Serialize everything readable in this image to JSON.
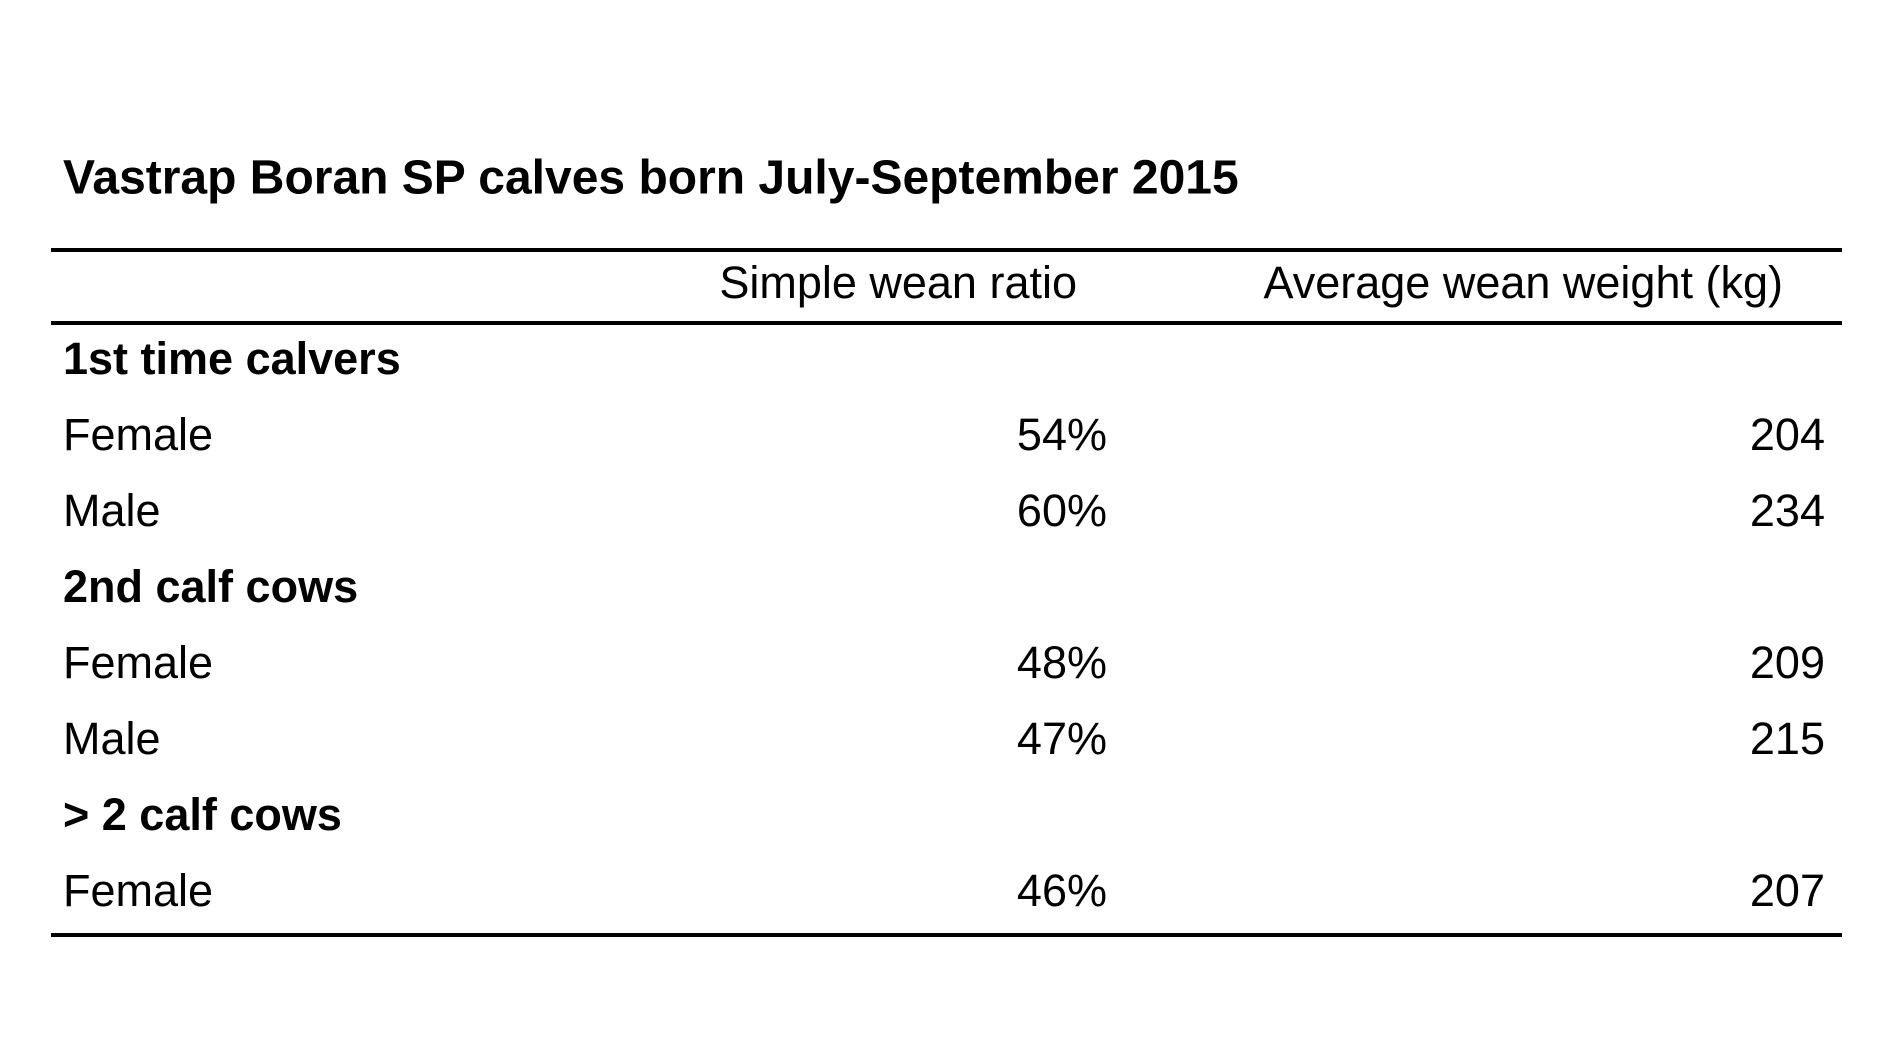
{
  "title": "Vastrap Boran SP calves born July-September 2015",
  "table": {
    "columns": [
      "Simple wean ratio",
      "Average wean weight (kg)"
    ],
    "groups": [
      {
        "label": "1st time calvers",
        "rows": [
          [
            "Female",
            "54%",
            "204"
          ],
          [
            "Male",
            "60%",
            "234"
          ]
        ]
      },
      {
        "label": "2nd calf cows",
        "rows": [
          [
            "Female",
            "48%",
            "209"
          ],
          [
            "Male",
            "47%",
            "215"
          ]
        ]
      },
      {
        "label": "> 2 calf cows",
        "rows": [
          [
            "Female",
            "46%",
            "207"
          ]
        ]
      }
    ]
  }
}
